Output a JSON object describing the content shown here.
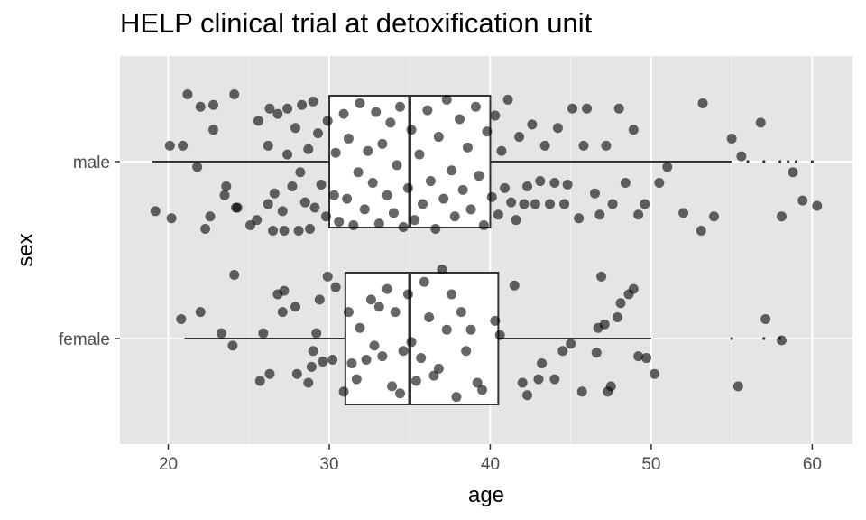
{
  "chart_data": {
    "type": "boxplot",
    "title": "HELP clinical trial at detoxification unit",
    "xlabel": "age",
    "ylabel": "sex",
    "xlim": [
      17,
      62.5
    ],
    "x_ticks": [
      20,
      30,
      40,
      50,
      60
    ],
    "categories": [
      "male",
      "female"
    ],
    "grid": true,
    "background": "#e5e5e5",
    "point_color": "#000000",
    "point_opacity": 0.6,
    "boxes": [
      {
        "name": "male",
        "whisker_low": 19,
        "q1": 30,
        "median": 35,
        "q3": 40,
        "whisker_high": 55,
        "outliers": [
          56,
          57,
          58,
          58.5,
          59,
          60
        ]
      },
      {
        "name": "female",
        "whisker_low": 21,
        "q1": 31,
        "median": 35,
        "q3": 40.5,
        "whisker_high": 50,
        "outliers": [
          55,
          57,
          58
        ]
      }
    ],
    "points": [
      {
        "group": "male",
        "x": 19.2,
        "y": 0.28
      },
      {
        "group": "male",
        "x": 20.2,
        "y": 0.32
      },
      {
        "group": "male",
        "x": 20.1,
        "y": -0.09
      },
      {
        "group": "male",
        "x": 20.9,
        "y": -0.09
      },
      {
        "group": "male",
        "x": 21.2,
        "y": -0.38
      },
      {
        "group": "male",
        "x": 21.8,
        "y": 0.03
      },
      {
        "group": "male",
        "x": 22.0,
        "y": -0.31
      },
      {
        "group": "male",
        "x": 22.3,
        "y": 0.38
      },
      {
        "group": "male",
        "x": 22.6,
        "y": 0.31
      },
      {
        "group": "male",
        "x": 22.8,
        "y": -0.32
      },
      {
        "group": "male",
        "x": 22.8,
        "y": -0.18
      },
      {
        "group": "male",
        "x": 23.5,
        "y": 0.19
      },
      {
        "group": "male",
        "x": 23.6,
        "y": 0.14
      },
      {
        "group": "male",
        "x": 24.1,
        "y": -0.38
      },
      {
        "group": "male",
        "x": 24.2,
        "y": 0.26
      },
      {
        "group": "male",
        "x": 24.3,
        "y": 0.26
      },
      {
        "group": "male",
        "x": 25.1,
        "y": 0.36
      },
      {
        "group": "male",
        "x": 25.5,
        "y": 0.33
      },
      {
        "group": "male",
        "x": 25.6,
        "y": -0.23
      },
      {
        "group": "male",
        "x": 26.2,
        "y": 0.24
      },
      {
        "group": "male",
        "x": 26.2,
        "y": -0.09
      },
      {
        "group": "male",
        "x": 26.3,
        "y": -0.3
      },
      {
        "group": "male",
        "x": 26.5,
        "y": 0.39
      },
      {
        "group": "male",
        "x": 26.6,
        "y": 0.18
      },
      {
        "group": "male",
        "x": 26.8,
        "y": -0.27
      },
      {
        "group": "male",
        "x": 27.1,
        "y": 0.28
      },
      {
        "group": "male",
        "x": 27.2,
        "y": 0.39
      },
      {
        "group": "male",
        "x": 27.4,
        "y": -0.04
      },
      {
        "group": "male",
        "x": 27.4,
        "y": -0.3
      },
      {
        "group": "male",
        "x": 27.7,
        "y": 0.14
      },
      {
        "group": "male",
        "x": 27.9,
        "y": -0.19
      },
      {
        "group": "male",
        "x": 28.1,
        "y": 0.39
      },
      {
        "group": "male",
        "x": 28.2,
        "y": 0.06
      },
      {
        "group": "male",
        "x": 28.3,
        "y": -0.32
      },
      {
        "group": "male",
        "x": 28.5,
        "y": 0.23
      },
      {
        "group": "male",
        "x": 28.7,
        "y": -0.07
      },
      {
        "group": "male",
        "x": 28.8,
        "y": 0.38
      },
      {
        "group": "male",
        "x": 29.0,
        "y": -0.34
      },
      {
        "group": "male",
        "x": 29.1,
        "y": 0.26
      },
      {
        "group": "male",
        "x": 29.3,
        "y": -0.16
      },
      {
        "group": "male",
        "x": 29.5,
        "y": 0.13
      },
      {
        "group": "male",
        "x": 29.8,
        "y": 0.31
      },
      {
        "group": "male",
        "x": 29.9,
        "y": -0.23
      },
      {
        "group": "male",
        "x": 30.3,
        "y": 0.19
      },
      {
        "group": "male",
        "x": 30.4,
        "y": -0.05
      },
      {
        "group": "male",
        "x": 30.6,
        "y": 0.34
      },
      {
        "group": "male",
        "x": 30.9,
        "y": -0.27
      },
      {
        "group": "male",
        "x": 31.1,
        "y": 0.21
      },
      {
        "group": "male",
        "x": 31.2,
        "y": -0.13
      },
      {
        "group": "male",
        "x": 31.5,
        "y": 0.36
      },
      {
        "group": "male",
        "x": 31.8,
        "y": 0.06
      },
      {
        "group": "male",
        "x": 31.9,
        "y": -0.33
      },
      {
        "group": "male",
        "x": 32.2,
        "y": 0.27
      },
      {
        "group": "male",
        "x": 32.4,
        "y": -0.06
      },
      {
        "group": "male",
        "x": 32.7,
        "y": 0.12
      },
      {
        "group": "male",
        "x": 32.9,
        "y": -0.28
      },
      {
        "group": "male",
        "x": 33.1,
        "y": 0.35
      },
      {
        "group": "male",
        "x": 33.3,
        "y": -0.1
      },
      {
        "group": "male",
        "x": 33.6,
        "y": 0.19
      },
      {
        "group": "male",
        "x": 33.8,
        "y": -0.22
      },
      {
        "group": "male",
        "x": 34.0,
        "y": 0.29
      },
      {
        "group": "male",
        "x": 34.2,
        "y": 0.02
      },
      {
        "group": "male",
        "x": 34.4,
        "y": -0.31
      },
      {
        "group": "male",
        "x": 34.6,
        "y": 0.37
      },
      {
        "group": "male",
        "x": 34.9,
        "y": 0.15
      },
      {
        "group": "male",
        "x": 35.1,
        "y": -0.18
      },
      {
        "group": "male",
        "x": 35.3,
        "y": 0.33
      },
      {
        "group": "male",
        "x": 35.6,
        "y": -0.04
      },
      {
        "group": "male",
        "x": 35.8,
        "y": 0.24
      },
      {
        "group": "male",
        "x": 36.1,
        "y": -0.29
      },
      {
        "group": "male",
        "x": 36.3,
        "y": 0.11
      },
      {
        "group": "male",
        "x": 36.6,
        "y": 0.38
      },
      {
        "group": "male",
        "x": 36.8,
        "y": -0.14
      },
      {
        "group": "male",
        "x": 37.1,
        "y": 0.21
      },
      {
        "group": "male",
        "x": 37.3,
        "y": -0.35
      },
      {
        "group": "male",
        "x": 37.6,
        "y": 0.05
      },
      {
        "group": "male",
        "x": 37.8,
        "y": 0.31
      },
      {
        "group": "male",
        "x": 38.1,
        "y": -0.24
      },
      {
        "group": "male",
        "x": 38.3,
        "y": 0.16
      },
      {
        "group": "male",
        "x": 38.6,
        "y": -0.08
      },
      {
        "group": "male",
        "x": 38.8,
        "y": 0.27
      },
      {
        "group": "male",
        "x": 39.1,
        "y": -0.31
      },
      {
        "group": "male",
        "x": 39.3,
        "y": 0.08
      },
      {
        "group": "male",
        "x": 39.6,
        "y": 0.36
      },
      {
        "group": "male",
        "x": 39.8,
        "y": -0.17
      },
      {
        "group": "male",
        "x": 40.1,
        "y": 0.2
      },
      {
        "group": "male",
        "x": 40.3,
        "y": -0.26
      },
      {
        "group": "male",
        "x": 40.5,
        "y": 0.3
      },
      {
        "group": "male",
        "x": 40.7,
        "y": -0.06
      },
      {
        "group": "male",
        "x": 40.9,
        "y": 0.15
      },
      {
        "group": "male",
        "x": 41.1,
        "y": -0.35
      },
      {
        "group": "male",
        "x": 41.3,
        "y": 0.23
      },
      {
        "group": "male",
        "x": 41.6,
        "y": 0.33
      },
      {
        "group": "male",
        "x": 41.8,
        "y": -0.14
      },
      {
        "group": "male",
        "x": 42.1,
        "y": 0.24
      },
      {
        "group": "male",
        "x": 42.3,
        "y": 0.14
      },
      {
        "group": "male",
        "x": 42.6,
        "y": -0.21
      },
      {
        "group": "male",
        "x": 42.8,
        "y": 0.24
      },
      {
        "group": "male",
        "x": 43.1,
        "y": 0.11
      },
      {
        "group": "male",
        "x": 43.4,
        "y": -0.09
      },
      {
        "group": "male",
        "x": 43.7,
        "y": 0.24
      },
      {
        "group": "male",
        "x": 44.0,
        "y": 0.12
      },
      {
        "group": "male",
        "x": 44.2,
        "y": -0.19
      },
      {
        "group": "male",
        "x": 44.6,
        "y": 0.24
      },
      {
        "group": "male",
        "x": 44.8,
        "y": 0.13
      },
      {
        "group": "male",
        "x": 45.1,
        "y": -0.3
      },
      {
        "group": "male",
        "x": 45.5,
        "y": 0.32
      },
      {
        "group": "male",
        "x": 45.8,
        "y": -0.09
      },
      {
        "group": "male",
        "x": 46.0,
        "y": -0.3
      },
      {
        "group": "male",
        "x": 46.5,
        "y": 0.18
      },
      {
        "group": "male",
        "x": 46.8,
        "y": 0.3
      },
      {
        "group": "male",
        "x": 47.2,
        "y": -0.09
      },
      {
        "group": "male",
        "x": 47.6,
        "y": 0.24
      },
      {
        "group": "male",
        "x": 48.0,
        "y": -0.3
      },
      {
        "group": "male",
        "x": 48.4,
        "y": 0.12
      },
      {
        "group": "male",
        "x": 48.9,
        "y": -0.18
      },
      {
        "group": "male",
        "x": 49.2,
        "y": 0.3
      },
      {
        "group": "male",
        "x": 49.6,
        "y": 0.24
      },
      {
        "group": "male",
        "x": 50.5,
        "y": 0.12
      },
      {
        "group": "male",
        "x": 51.0,
        "y": 0.03
      },
      {
        "group": "male",
        "x": 52.0,
        "y": 0.29
      },
      {
        "group": "male",
        "x": 53.1,
        "y": 0.39
      },
      {
        "group": "male",
        "x": 53.2,
        "y": -0.33
      },
      {
        "group": "male",
        "x": 53.9,
        "y": 0.31
      },
      {
        "group": "male",
        "x": 55.0,
        "y": -0.13
      },
      {
        "group": "male",
        "x": 55.6,
        "y": -0.03
      },
      {
        "group": "male",
        "x": 56.8,
        "y": -0.22
      },
      {
        "group": "male",
        "x": 58.1,
        "y": 0.31
      },
      {
        "group": "male",
        "x": 58.8,
        "y": 0.06
      },
      {
        "group": "male",
        "x": 59.4,
        "y": 0.22
      },
      {
        "group": "male",
        "x": 60.3,
        "y": 0.25
      },
      {
        "group": "female",
        "x": 20.8,
        "y": -0.11
      },
      {
        "group": "female",
        "x": 22.0,
        "y": -0.15
      },
      {
        "group": "female",
        "x": 23.3,
        "y": -0.03
      },
      {
        "group": "female",
        "x": 24.0,
        "y": 0.04
      },
      {
        "group": "female",
        "x": 24.1,
        "y": -0.36
      },
      {
        "group": "female",
        "x": 25.7,
        "y": 0.24
      },
      {
        "group": "female",
        "x": 25.9,
        "y": -0.03
      },
      {
        "group": "female",
        "x": 26.3,
        "y": 0.2
      },
      {
        "group": "female",
        "x": 26.8,
        "y": -0.25
      },
      {
        "group": "female",
        "x": 27.1,
        "y": -0.15
      },
      {
        "group": "female",
        "x": 27.2,
        "y": -0.27
      },
      {
        "group": "female",
        "x": 27.9,
        "y": -0.18
      },
      {
        "group": "female",
        "x": 28.0,
        "y": 0.2
      },
      {
        "group": "female",
        "x": 28.7,
        "y": 0.25
      },
      {
        "group": "female",
        "x": 28.9,
        "y": 0.16
      },
      {
        "group": "female",
        "x": 29.0,
        "y": 0.07
      },
      {
        "group": "female",
        "x": 29.2,
        "y": -0.03
      },
      {
        "group": "female",
        "x": 29.4,
        "y": -0.22
      },
      {
        "group": "female",
        "x": 29.6,
        "y": 0.13
      },
      {
        "group": "female",
        "x": 29.9,
        "y": -0.35
      },
      {
        "group": "female",
        "x": 30.2,
        "y": 0.12
      },
      {
        "group": "female",
        "x": 30.4,
        "y": -0.29
      },
      {
        "group": "female",
        "x": 30.9,
        "y": 0.3
      },
      {
        "group": "female",
        "x": 31.2,
        "y": -0.15
      },
      {
        "group": "female",
        "x": 31.4,
        "y": 0.14
      },
      {
        "group": "female",
        "x": 31.7,
        "y": 0.23
      },
      {
        "group": "female",
        "x": 31.9,
        "y": -0.06
      },
      {
        "group": "female",
        "x": 32.3,
        "y": 0.12
      },
      {
        "group": "female",
        "x": 32.6,
        "y": -0.22
      },
      {
        "group": "female",
        "x": 32.8,
        "y": 0.04
      },
      {
        "group": "female",
        "x": 33.1,
        "y": -0.18
      },
      {
        "group": "female",
        "x": 33.3,
        "y": 0.1
      },
      {
        "group": "female",
        "x": 33.6,
        "y": -0.28
      },
      {
        "group": "female",
        "x": 33.9,
        "y": 0.27
      },
      {
        "group": "female",
        "x": 34.1,
        "y": -0.15
      },
      {
        "group": "female",
        "x": 34.4,
        "y": 0.31
      },
      {
        "group": "female",
        "x": 34.6,
        "y": 0.07
      },
      {
        "group": "female",
        "x": 34.9,
        "y": -0.25
      },
      {
        "group": "female",
        "x": 35.1,
        "y": 0.02
      },
      {
        "group": "female",
        "x": 35.4,
        "y": 0.24
      },
      {
        "group": "female",
        "x": 35.7,
        "y": 0.11
      },
      {
        "group": "female",
        "x": 35.9,
        "y": -0.32
      },
      {
        "group": "female",
        "x": 36.2,
        "y": -0.12
      },
      {
        "group": "female",
        "x": 36.5,
        "y": 0.21
      },
      {
        "group": "female",
        "x": 36.8,
        "y": 0.17
      },
      {
        "group": "female",
        "x": 37.0,
        "y": -0.39
      },
      {
        "group": "female",
        "x": 37.3,
        "y": -0.05
      },
      {
        "group": "female",
        "x": 37.6,
        "y": -0.25
      },
      {
        "group": "female",
        "x": 37.9,
        "y": 0.33
      },
      {
        "group": "female",
        "x": 38.2,
        "y": -0.15
      },
      {
        "group": "female",
        "x": 38.5,
        "y": 0.07
      },
      {
        "group": "female",
        "x": 38.8,
        "y": -0.05
      },
      {
        "group": "female",
        "x": 39.2,
        "y": 0.25
      },
      {
        "group": "female",
        "x": 39.5,
        "y": 0.29
      },
      {
        "group": "female",
        "x": 40.3,
        "y": -0.1
      },
      {
        "group": "female",
        "x": 40.6,
        "y": -0.02
      },
      {
        "group": "female",
        "x": 41.5,
        "y": -0.3
      },
      {
        "group": "female",
        "x": 42.0,
        "y": 0.25
      },
      {
        "group": "female",
        "x": 42.3,
        "y": 0.32
      },
      {
        "group": "female",
        "x": 43.0,
        "y": 0.23
      },
      {
        "group": "female",
        "x": 43.2,
        "y": 0.14
      },
      {
        "group": "female",
        "x": 44.0,
        "y": 0.23
      },
      {
        "group": "female",
        "x": 44.5,
        "y": 0.07
      },
      {
        "group": "female",
        "x": 45.0,
        "y": 0.03
      },
      {
        "group": "female",
        "x": 45.7,
        "y": 0.3
      },
      {
        "group": "female",
        "x": 46.6,
        "y": 0.08
      },
      {
        "group": "female",
        "x": 46.7,
        "y": -0.06
      },
      {
        "group": "female",
        "x": 46.9,
        "y": -0.35
      },
      {
        "group": "female",
        "x": 47.1,
        "y": -0.08
      },
      {
        "group": "female",
        "x": 47.3,
        "y": 0.3
      },
      {
        "group": "female",
        "x": 47.5,
        "y": 0.27
      },
      {
        "group": "female",
        "x": 47.9,
        "y": -0.12
      },
      {
        "group": "female",
        "x": 48.1,
        "y": -0.2
      },
      {
        "group": "female",
        "x": 48.6,
        "y": -0.25
      },
      {
        "group": "female",
        "x": 48.9,
        "y": -0.28
      },
      {
        "group": "female",
        "x": 49.2,
        "y": 0.1
      },
      {
        "group": "female",
        "x": 49.7,
        "y": 0.11
      },
      {
        "group": "female",
        "x": 50.2,
        "y": 0.2
      },
      {
        "group": "female",
        "x": 55.4,
        "y": 0.27
      },
      {
        "group": "female",
        "x": 57.1,
        "y": -0.11
      },
      {
        "group": "female",
        "x": 58.1,
        "y": 0.01
      }
    ]
  }
}
